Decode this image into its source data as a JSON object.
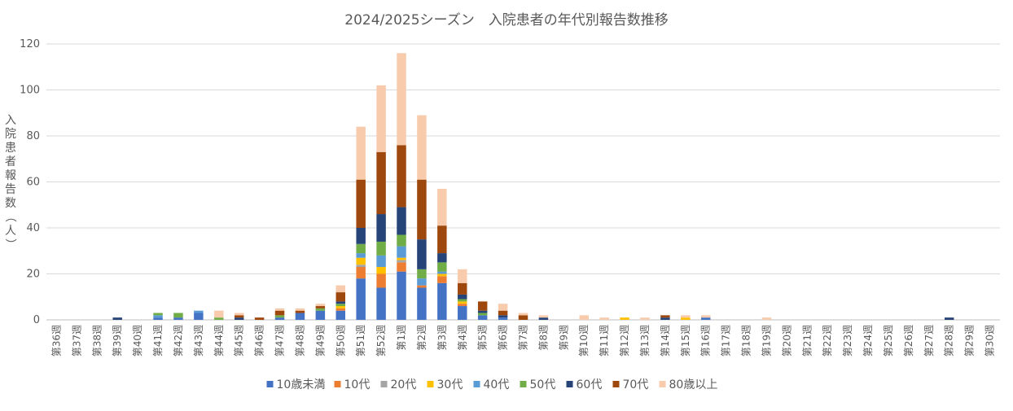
{
  "chart_data": {
    "type": "bar",
    "stacked": true,
    "title": "2024/2025シーズン　入院患者の年代別報告数推移",
    "xlabel": "",
    "ylabel": "入院患者報告数（人）",
    "ylim": [
      0,
      120
    ],
    "yticks": [
      0,
      20,
      40,
      60,
      80,
      100,
      120
    ],
    "grid": true,
    "legend_position": "bottom",
    "categories": [
      "第36週",
      "第37週",
      "第38週",
      "第39週",
      "第40週",
      "第41週",
      "第42週",
      "第43週",
      "第44週",
      "第45週",
      "第46週",
      "第47週",
      "第48週",
      "第49週",
      "第50週",
      "第51週",
      "第52週",
      "第1週",
      "第2週",
      "第3週",
      "第4週",
      "第5週",
      "第6週",
      "第7週",
      "第8週",
      "第9週",
      "第10週",
      "第11週",
      "第12週",
      "第13週",
      "第14週",
      "第15週",
      "第16週",
      "第17週",
      "第18週",
      "第19週",
      "第20週",
      "第21週",
      "第22週",
      "第23週",
      "第24週",
      "第25週",
      "第26週",
      "第27週",
      "第28週",
      "第29週",
      "第30週"
    ],
    "series": [
      {
        "name": "10歳未満",
        "color": "#4472C4",
        "values": [
          0,
          0,
          0,
          0,
          0,
          1,
          1,
          3,
          0,
          0,
          0,
          1,
          3,
          4,
          4,
          18,
          14,
          21,
          14,
          16,
          6,
          2,
          1,
          0,
          0,
          0,
          0,
          0,
          0,
          0,
          0,
          0,
          1,
          0,
          0,
          0,
          0,
          0,
          0,
          0,
          0,
          0,
          0,
          0,
          0,
          0,
          0
        ]
      },
      {
        "name": "10代",
        "color": "#ED7D31",
        "values": [
          0,
          0,
          0,
          0,
          0,
          0,
          0,
          0,
          0,
          0,
          0,
          0,
          0,
          0,
          1,
          5,
          6,
          4,
          1,
          3,
          1,
          0,
          0,
          0,
          0,
          0,
          0,
          0,
          0,
          0,
          0,
          0,
          0,
          0,
          0,
          0,
          0,
          0,
          0,
          0,
          0,
          0,
          0,
          0,
          0,
          0,
          0
        ]
      },
      {
        "name": "20代",
        "color": "#A5A5A5",
        "values": [
          0,
          0,
          0,
          0,
          0,
          0,
          0,
          0,
          0,
          0,
          0,
          0,
          0,
          0,
          0,
          1,
          0,
          1,
          0,
          0,
          0,
          0,
          0,
          0,
          0,
          0,
          0,
          0,
          0,
          0,
          0,
          0,
          0,
          0,
          0,
          0,
          0,
          0,
          0,
          0,
          0,
          0,
          0,
          0,
          0,
          0,
          0
        ]
      },
      {
        "name": "30代",
        "color": "#FFC000",
        "values": [
          0,
          0,
          0,
          0,
          0,
          0,
          0,
          0,
          0,
          0,
          0,
          0,
          0,
          0,
          1,
          3,
          3,
          1,
          0,
          1,
          1,
          0,
          0,
          0,
          0,
          0,
          0,
          0,
          1,
          0,
          0,
          1,
          0,
          0,
          0,
          0,
          0,
          0,
          0,
          0,
          0,
          0,
          0,
          0,
          0,
          0,
          0
        ]
      },
      {
        "name": "40代",
        "color": "#5B9BD5",
        "values": [
          0,
          0,
          0,
          0,
          0,
          1,
          0,
          1,
          0,
          0,
          0,
          0,
          0,
          0,
          0,
          2,
          5,
          5,
          3,
          1,
          0,
          0,
          0,
          0,
          0,
          0,
          0,
          0,
          0,
          0,
          0,
          0,
          0,
          0,
          0,
          0,
          0,
          0,
          0,
          0,
          0,
          0,
          0,
          0,
          0,
          0,
          0
        ]
      },
      {
        "name": "50代",
        "color": "#70AD47",
        "values": [
          0,
          0,
          0,
          0,
          0,
          1,
          2,
          0,
          1,
          0,
          0,
          1,
          0,
          1,
          1,
          4,
          6,
          5,
          4,
          4,
          1,
          1,
          0,
          0,
          0,
          0,
          0,
          0,
          0,
          0,
          0,
          0,
          0,
          0,
          0,
          0,
          0,
          0,
          0,
          0,
          0,
          0,
          0,
          0,
          0,
          0,
          0
        ]
      },
      {
        "name": "60代",
        "color": "#264478",
        "values": [
          0,
          0,
          0,
          1,
          0,
          0,
          0,
          0,
          0,
          1,
          0,
          0,
          0,
          0,
          1,
          7,
          12,
          12,
          13,
          4,
          2,
          1,
          1,
          0,
          1,
          0,
          0,
          0,
          0,
          0,
          1,
          0,
          0,
          0,
          0,
          0,
          0,
          0,
          0,
          0,
          0,
          0,
          0,
          0,
          1,
          0,
          0
        ]
      },
      {
        "name": "70代",
        "color": "#9E480E",
        "values": [
          0,
          0,
          0,
          0,
          0,
          0,
          0,
          0,
          0,
          1,
          1,
          2,
          1,
          1,
          4,
          21,
          27,
          27,
          26,
          12,
          5,
          4,
          2,
          2,
          0,
          0,
          0,
          0,
          0,
          0,
          1,
          0,
          0,
          0,
          0,
          0,
          0,
          0,
          0,
          0,
          0,
          0,
          0,
          0,
          0,
          0,
          0
        ]
      },
      {
        "name": "80歳以上",
        "color": "#F8CBAD",
        "values": [
          0,
          0,
          0,
          0,
          0,
          0,
          0,
          0,
          3,
          1,
          0,
          1,
          1,
          1,
          3,
          23,
          29,
          40,
          28,
          16,
          6,
          0,
          3,
          1,
          1,
          0,
          2,
          1,
          0,
          1,
          0,
          1,
          1,
          0,
          0,
          1,
          0,
          0,
          0,
          0,
          0,
          0,
          0,
          0,
          0,
          0,
          0
        ]
      }
    ]
  }
}
